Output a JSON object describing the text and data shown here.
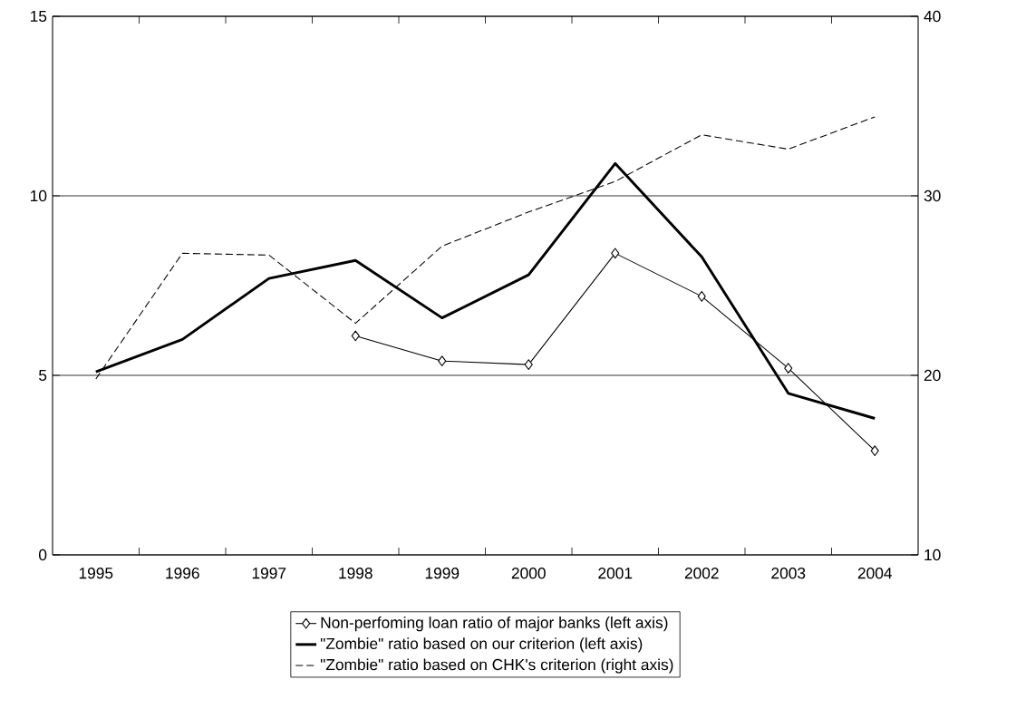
{
  "chart_data": {
    "type": "line",
    "categories": [
      "1995",
      "1996",
      "1997",
      "1998",
      "1999",
      "2000",
      "2001",
      "2002",
      "2003",
      "2004"
    ],
    "series": [
      {
        "name": "Non-perfoming loan ratio of major banks (left axis)",
        "color": "#000000",
        "marker": "diamond",
        "line_style": "solid",
        "values": [
          null,
          null,
          null,
          6.1,
          5.4,
          5.3,
          8.4,
          7.2,
          5.2,
          2.9
        ]
      },
      {
        "name": "\"Zombie\" ratio based on our criterion (left axis)",
        "color": "#000000",
        "marker": "none",
        "line_style": "solid",
        "values": [
          5.1,
          6.0,
          7.7,
          8.2,
          6.6,
          7.8,
          10.9,
          8.3,
          4.5,
          3.8
        ]
      },
      {
        "name": "\"Zombie\" ratio based on CHK's criterion (right axis)",
        "color": "#000000",
        "marker": "none",
        "line_style": "dashed",
        "axis": "y2",
        "values": [
          19.8,
          26.8,
          26.7,
          22.9,
          27.2,
          29.1,
          30.8,
          33.4,
          32.6,
          34.4
        ]
      }
    ],
    "ylim": [
      0,
      15
    ],
    "yticks": [
      0,
      5,
      10,
      15
    ],
    "y2lim": [
      10,
      40
    ],
    "y2ticks": [
      10,
      20,
      30,
      40
    ],
    "grid": "y",
    "legend": "bottom"
  }
}
